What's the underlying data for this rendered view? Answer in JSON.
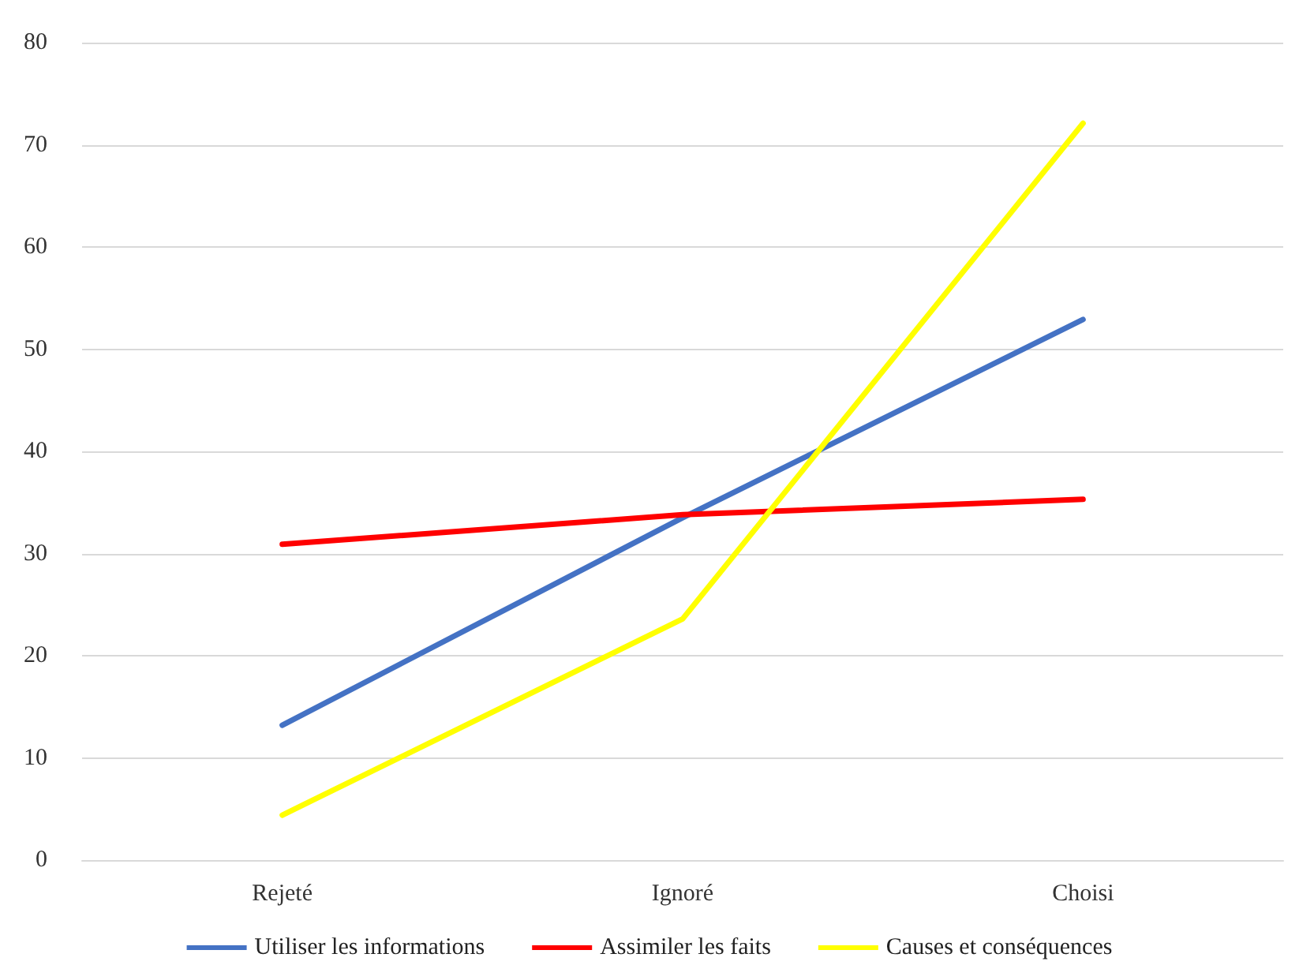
{
  "chart_data": {
    "type": "line",
    "categories": [
      "Rejeté",
      "Ignoré",
      "Choisi"
    ],
    "series": [
      {
        "name": "Utiliser les informations",
        "color": "#4472c4",
        "values": [
          13.2,
          33.5,
          52.9
        ]
      },
      {
        "name": "Assimiler les faits",
        "color": "#ff0000",
        "values": [
          30.9,
          33.8,
          35.3
        ]
      },
      {
        "name": "Causes et conséquences",
        "color": "#ffff00",
        "values": [
          4.4,
          23.6,
          72.1
        ]
      }
    ],
    "ylim": [
      0,
      80
    ],
    "yticks": [
      0,
      10,
      20,
      30,
      40,
      50,
      60,
      70,
      80
    ],
    "grid": "y",
    "legend": "bottom",
    "marker": "none",
    "line_style": "solid"
  }
}
